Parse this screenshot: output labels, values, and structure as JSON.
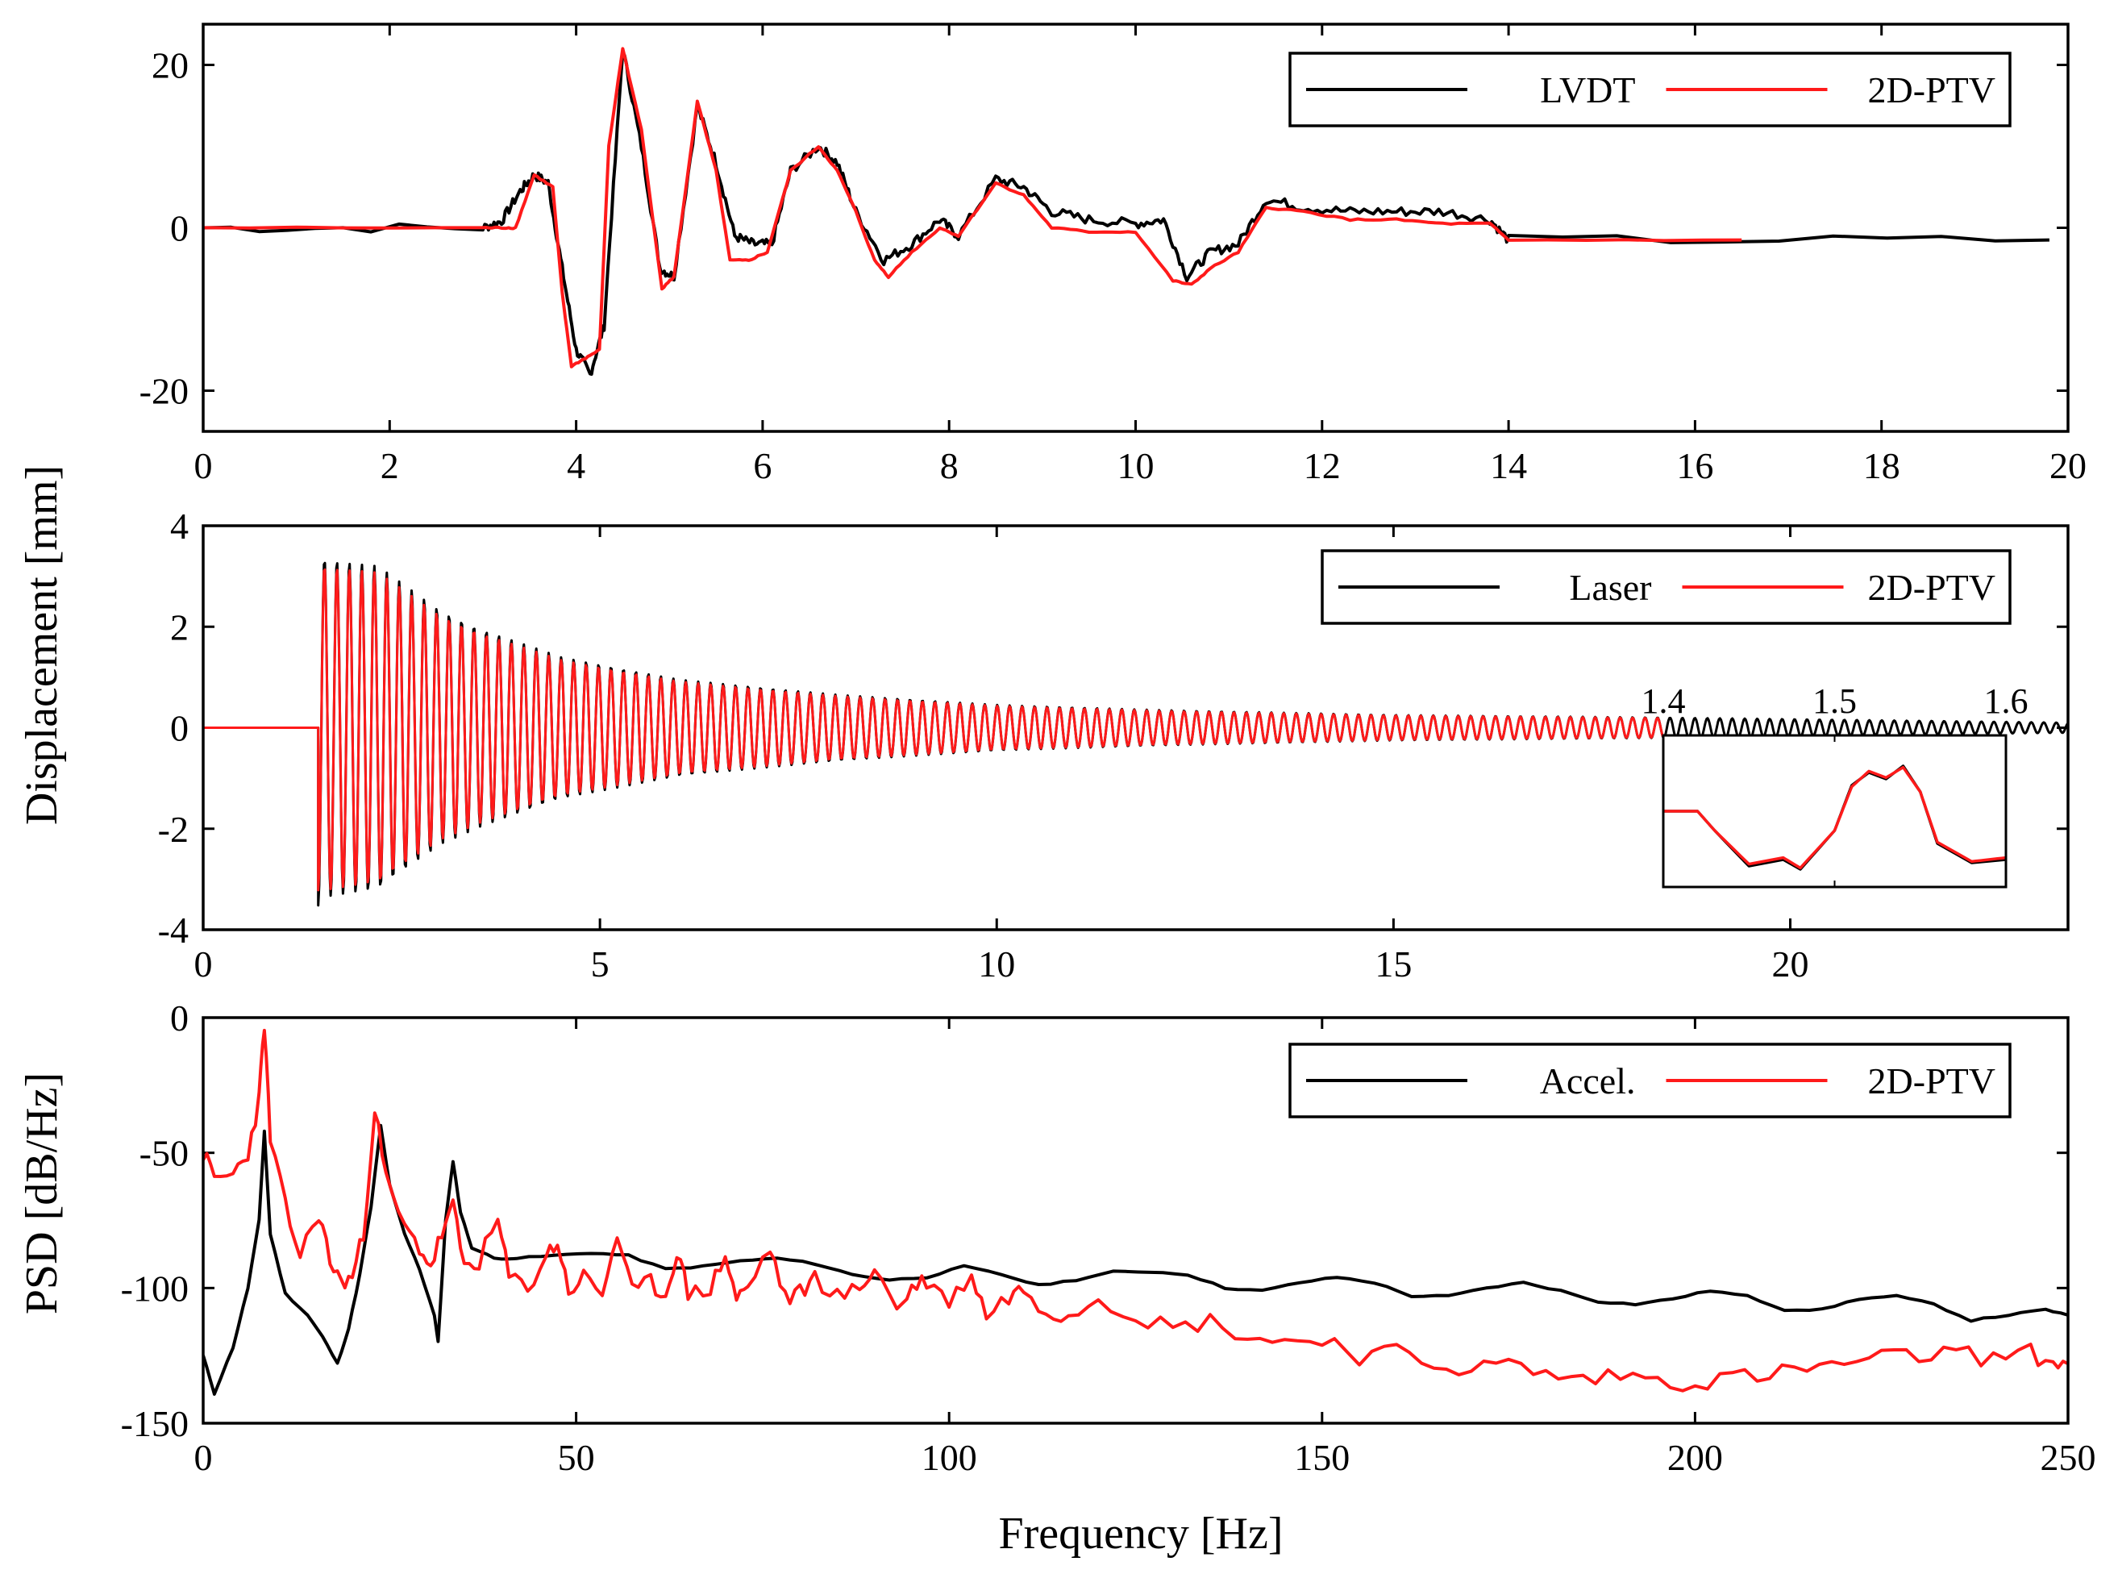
{
  "figure": {
    "shared_ylabel": "Displacement [mm]"
  },
  "chart_data": [
    {
      "type": "line",
      "panel": "top",
      "title": "",
      "xlabel": "",
      "ylabel": "",
      "xlim": [
        0,
        20
      ],
      "ylim": [
        -25,
        25
      ],
      "xticks": [
        "0",
        "2",
        "4",
        "6",
        "8",
        "10",
        "12",
        "14",
        "16",
        "18",
        "20"
      ],
      "yticks": [
        "-20",
        "0",
        "20"
      ],
      "legend": {
        "position": "top-right",
        "entries": [
          "LVDT",
          "2D-PTV"
        ]
      },
      "series": [
        {
          "name": "LVDT",
          "color": "#000000",
          "x": [
            0,
            3.0,
            3.2,
            3.4,
            3.55,
            3.7,
            3.85,
            4.0,
            4.15,
            4.3,
            4.5,
            4.7,
            4.9,
            5.05,
            5.3,
            5.5,
            5.7,
            5.9,
            6.1,
            6.3,
            6.6,
            6.8,
            7.0,
            7.3,
            7.6,
            7.9,
            8.1,
            8.5,
            8.8,
            9.1,
            9.5,
            10.0,
            10.3,
            10.55,
            10.8,
            11.1,
            11.4,
            11.8,
            12.3,
            12.8,
            13.3,
            13.8,
            14.0,
            19.8
          ],
          "values": [
            0,
            0,
            0.8,
            4.5,
            6.5,
            5.5,
            -5,
            -15,
            -18,
            -12,
            22,
            10,
            -5,
            -6,
            15,
            8,
            -1,
            -2,
            -2,
            7,
            10,
            8,
            2,
            -4,
            -2,
            1,
            -1,
            6,
            5,
            2,
            1,
            0.5,
            1,
            -6,
            -3,
            -2,
            3.5,
            2.5,
            2,
            2,
            2,
            1,
            -1.5,
            -1.5
          ]
        },
        {
          "name": "2D-PTV",
          "color": "#ff1a1a",
          "x": [
            0,
            3.0,
            3.2,
            3.35,
            3.55,
            3.75,
            3.85,
            3.95,
            4.1,
            4.25,
            4.35,
            4.5,
            4.7,
            4.92,
            5.05,
            5.3,
            5.5,
            5.65,
            5.85,
            6.05,
            6.3,
            6.6,
            6.8,
            7.0,
            7.2,
            7.35,
            7.6,
            7.9,
            8.1,
            8.5,
            8.8,
            9.1,
            9.5,
            10.0,
            10.4,
            10.6,
            10.8,
            11.1,
            11.4,
            11.8,
            12.3,
            12.8,
            13.3,
            13.8,
            14.0,
            16.5
          ],
          "values": [
            0,
            0,
            0,
            0,
            6.5,
            5,
            -8,
            -17,
            -16,
            -15,
            10,
            22,
            12,
            -7.5,
            -6,
            15.5,
            7,
            -4,
            -4,
            -3,
            7,
            10,
            7,
            2,
            -4,
            -6,
            -3,
            0,
            -1,
            5.5,
            4,
            0,
            -0.5,
            -0.5,
            -6.5,
            -7,
            -5,
            -3,
            2.5,
            2,
            1,
            1,
            0.5,
            0.5,
            -1.5,
            -1.5
          ]
        }
      ]
    },
    {
      "type": "line",
      "panel": "middle",
      "title": "",
      "xlabel": "",
      "ylabel": "",
      "xlim": [
        0,
        23.5
      ],
      "ylim": [
        -4,
        4
      ],
      "xticks": [
        "0",
        "5",
        "10",
        "15",
        "20"
      ],
      "yticks": [
        "-4",
        "-2",
        "0",
        "2",
        "4"
      ],
      "legend": {
        "position": "top-right",
        "entries": [
          "Laser",
          "2D-PTV"
        ]
      },
      "series": [
        {
          "name": "Laser",
          "color": "#000000",
          "description_values": {
            "onset_time": 1.45,
            "initial_amplitude": 3.4,
            "oscillation_period": 0.157,
            "decay_envelope_t": [
              1.5,
              2.2,
              3.0,
              3.5,
              4.5,
              6.0,
              8.0,
              10.0,
              12.0,
              15.0,
              18.4,
              23.5
            ],
            "decay_envelope_a": [
              3.35,
              3.2,
              2.3,
              1.95,
              1.4,
              0.95,
              0.65,
              0.45,
              0.35,
              0.25,
              0.2,
              0.1
            ]
          }
        },
        {
          "name": "2D-PTV",
          "color": "#ff1a1a",
          "description_values": {
            "onset_time": 1.45,
            "end_time": 18.4,
            "initial_amplitude": 3.2,
            "oscillation_period": 0.157
          }
        }
      ],
      "inset": {
        "xticks": [
          "1.4",
          "1.5",
          "1.6"
        ],
        "xlim": [
          1.4,
          1.6
        ],
        "series": [
          {
            "name": "Laser",
            "color": "#000000",
            "x": [
              1.4,
              1.42,
              1.43,
              1.45,
              1.47,
              1.48,
              1.5,
              1.51,
              1.52,
              1.53,
              1.54,
              1.55,
              1.56,
              1.58,
              1.6
            ],
            "values": [
              0,
              0,
              -0.3,
              -0.85,
              -0.75,
              -0.9,
              -0.3,
              0.4,
              0.6,
              0.5,
              0.7,
              0.3,
              -0.5,
              -0.8,
              -0.75
            ]
          },
          {
            "name": "2D-PTV",
            "color": "#ff1a1a",
            "x": [
              1.4,
              1.42,
              1.43,
              1.45,
              1.47,
              1.48,
              1.5,
              1.51,
              1.52,
              1.53,
              1.54,
              1.55,
              1.56,
              1.58,
              1.6
            ],
            "values": [
              0,
              0,
              -0.3,
              -0.82,
              -0.72,
              -0.88,
              -0.3,
              0.38,
              0.62,
              0.52,
              0.68,
              0.3,
              -0.48,
              -0.78,
              -0.72
            ]
          }
        ]
      }
    },
    {
      "type": "line",
      "panel": "bottom",
      "title": "",
      "xlabel": "Frequency [Hz]",
      "ylabel": "PSD [dB/Hz]",
      "xlim": [
        0,
        250
      ],
      "ylim": [
        -150,
        0
      ],
      "xticks": [
        "0",
        "50",
        "100",
        "150",
        "200",
        "250"
      ],
      "yticks": [
        "-150",
        "-100",
        "-50",
        "0"
      ],
      "legend": {
        "position": "top-right",
        "entries": [
          "Accel.",
          "2D-PTV"
        ]
      },
      "series": [
        {
          "name": "Accel.",
          "color": "#000000",
          "x": [
            0,
            1.5,
            4,
            6,
            7.5,
            8.2,
            9,
            11,
            14,
            16,
            18,
            19.5,
            21,
            22.5,
            23.8,
            25,
            27,
            29,
            31,
            31.5,
            32.5,
            33.5,
            34.5,
            36,
            39,
            42,
            47,
            52,
            57,
            62,
            67,
            72,
            77,
            82,
            87,
            92,
            97,
            102,
            107,
            112,
            117,
            122,
            127,
            132,
            137,
            142,
            147,
            152,
            157,
            162,
            167,
            172,
            177,
            182,
            187,
            192,
            197,
            202,
            207,
            212,
            217,
            222,
            227,
            232,
            237,
            242,
            247,
            250
          ],
          "values": [
            -125,
            -139,
            -122,
            -100,
            -75,
            -42,
            -80,
            -102,
            -110,
            -118,
            -128,
            -115,
            -95,
            -70,
            -40,
            -62,
            -80,
            -93,
            -110,
            -120,
            -75,
            -53,
            -72,
            -85,
            -89,
            -89,
            -88,
            -87,
            -88,
            -93,
            -92,
            -90,
            -89,
            -91,
            -95,
            -97,
            -96,
            -92,
            -95,
            -99,
            -97,
            -94,
            -94,
            -95,
            -100,
            -101,
            -98,
            -96,
            -98,
            -103,
            -103,
            -100,
            -98,
            -101,
            -105,
            -106,
            -104,
            -101,
            -103,
            -108,
            -108,
            -104,
            -103,
            -106,
            -112,
            -110,
            -108,
            -110
          ]
        },
        {
          "name": "2D-PTV",
          "color": "#ff1a1a",
          "x": [
            0,
            1.5,
            4,
            6,
            7.5,
            8.2,
            9,
            11,
            13,
            15.5,
            17,
            18.5,
            20,
            21.5,
            23,
            24.5,
            27,
            29,
            30.5,
            32,
            33.5,
            35,
            37,
            39.5,
            41,
            43.5,
            46,
            47.5,
            49,
            51,
            53.5,
            55.5,
            57.5,
            60,
            62,
            63.5,
            65,
            68,
            70,
            71.5,
            73,
            76,
            78,
            80,
            82,
            85,
            88,
            90,
            93,
            95,
            97,
            100,
            103,
            105,
            108,
            110,
            113,
            116,
            120,
            125,
            130,
            135,
            140,
            145,
            150,
            155,
            160,
            165,
            170,
            175,
            180,
            185,
            190,
            195,
            200,
            205,
            210,
            215,
            220,
            225,
            230,
            235,
            240,
            245,
            248,
            250
          ],
          "values": [
            -50,
            -60,
            -58,
            -50,
            -30,
            -2,
            -45,
            -70,
            -88,
            -72,
            -90,
            -98,
            -96,
            -80,
            -33,
            -60,
            -78,
            -85,
            -92,
            -80,
            -70,
            -92,
            -90,
            -75,
            -96,
            -100,
            -88,
            -83,
            -101,
            -96,
            -102,
            -80,
            -102,
            -98,
            -103,
            -86,
            -102,
            -100,
            -88,
            -104,
            -100,
            -85,
            -104,
            -102,
            -96,
            -103,
            -101,
            -92,
            -108,
            -100,
            -97,
            -105,
            -95,
            -110,
            -103,
            -100,
            -108,
            -110,
            -103,
            -110,
            -115,
            -112,
            -118,
            -120,
            -118,
            -125,
            -124,
            -128,
            -130,
            -128,
            -132,
            -134,
            -132,
            -134,
            -135,
            -133,
            -132,
            -130,
            -128,
            -126,
            -125,
            -124,
            -126,
            -124,
            -128,
            -128
          ]
        }
      ]
    }
  ]
}
